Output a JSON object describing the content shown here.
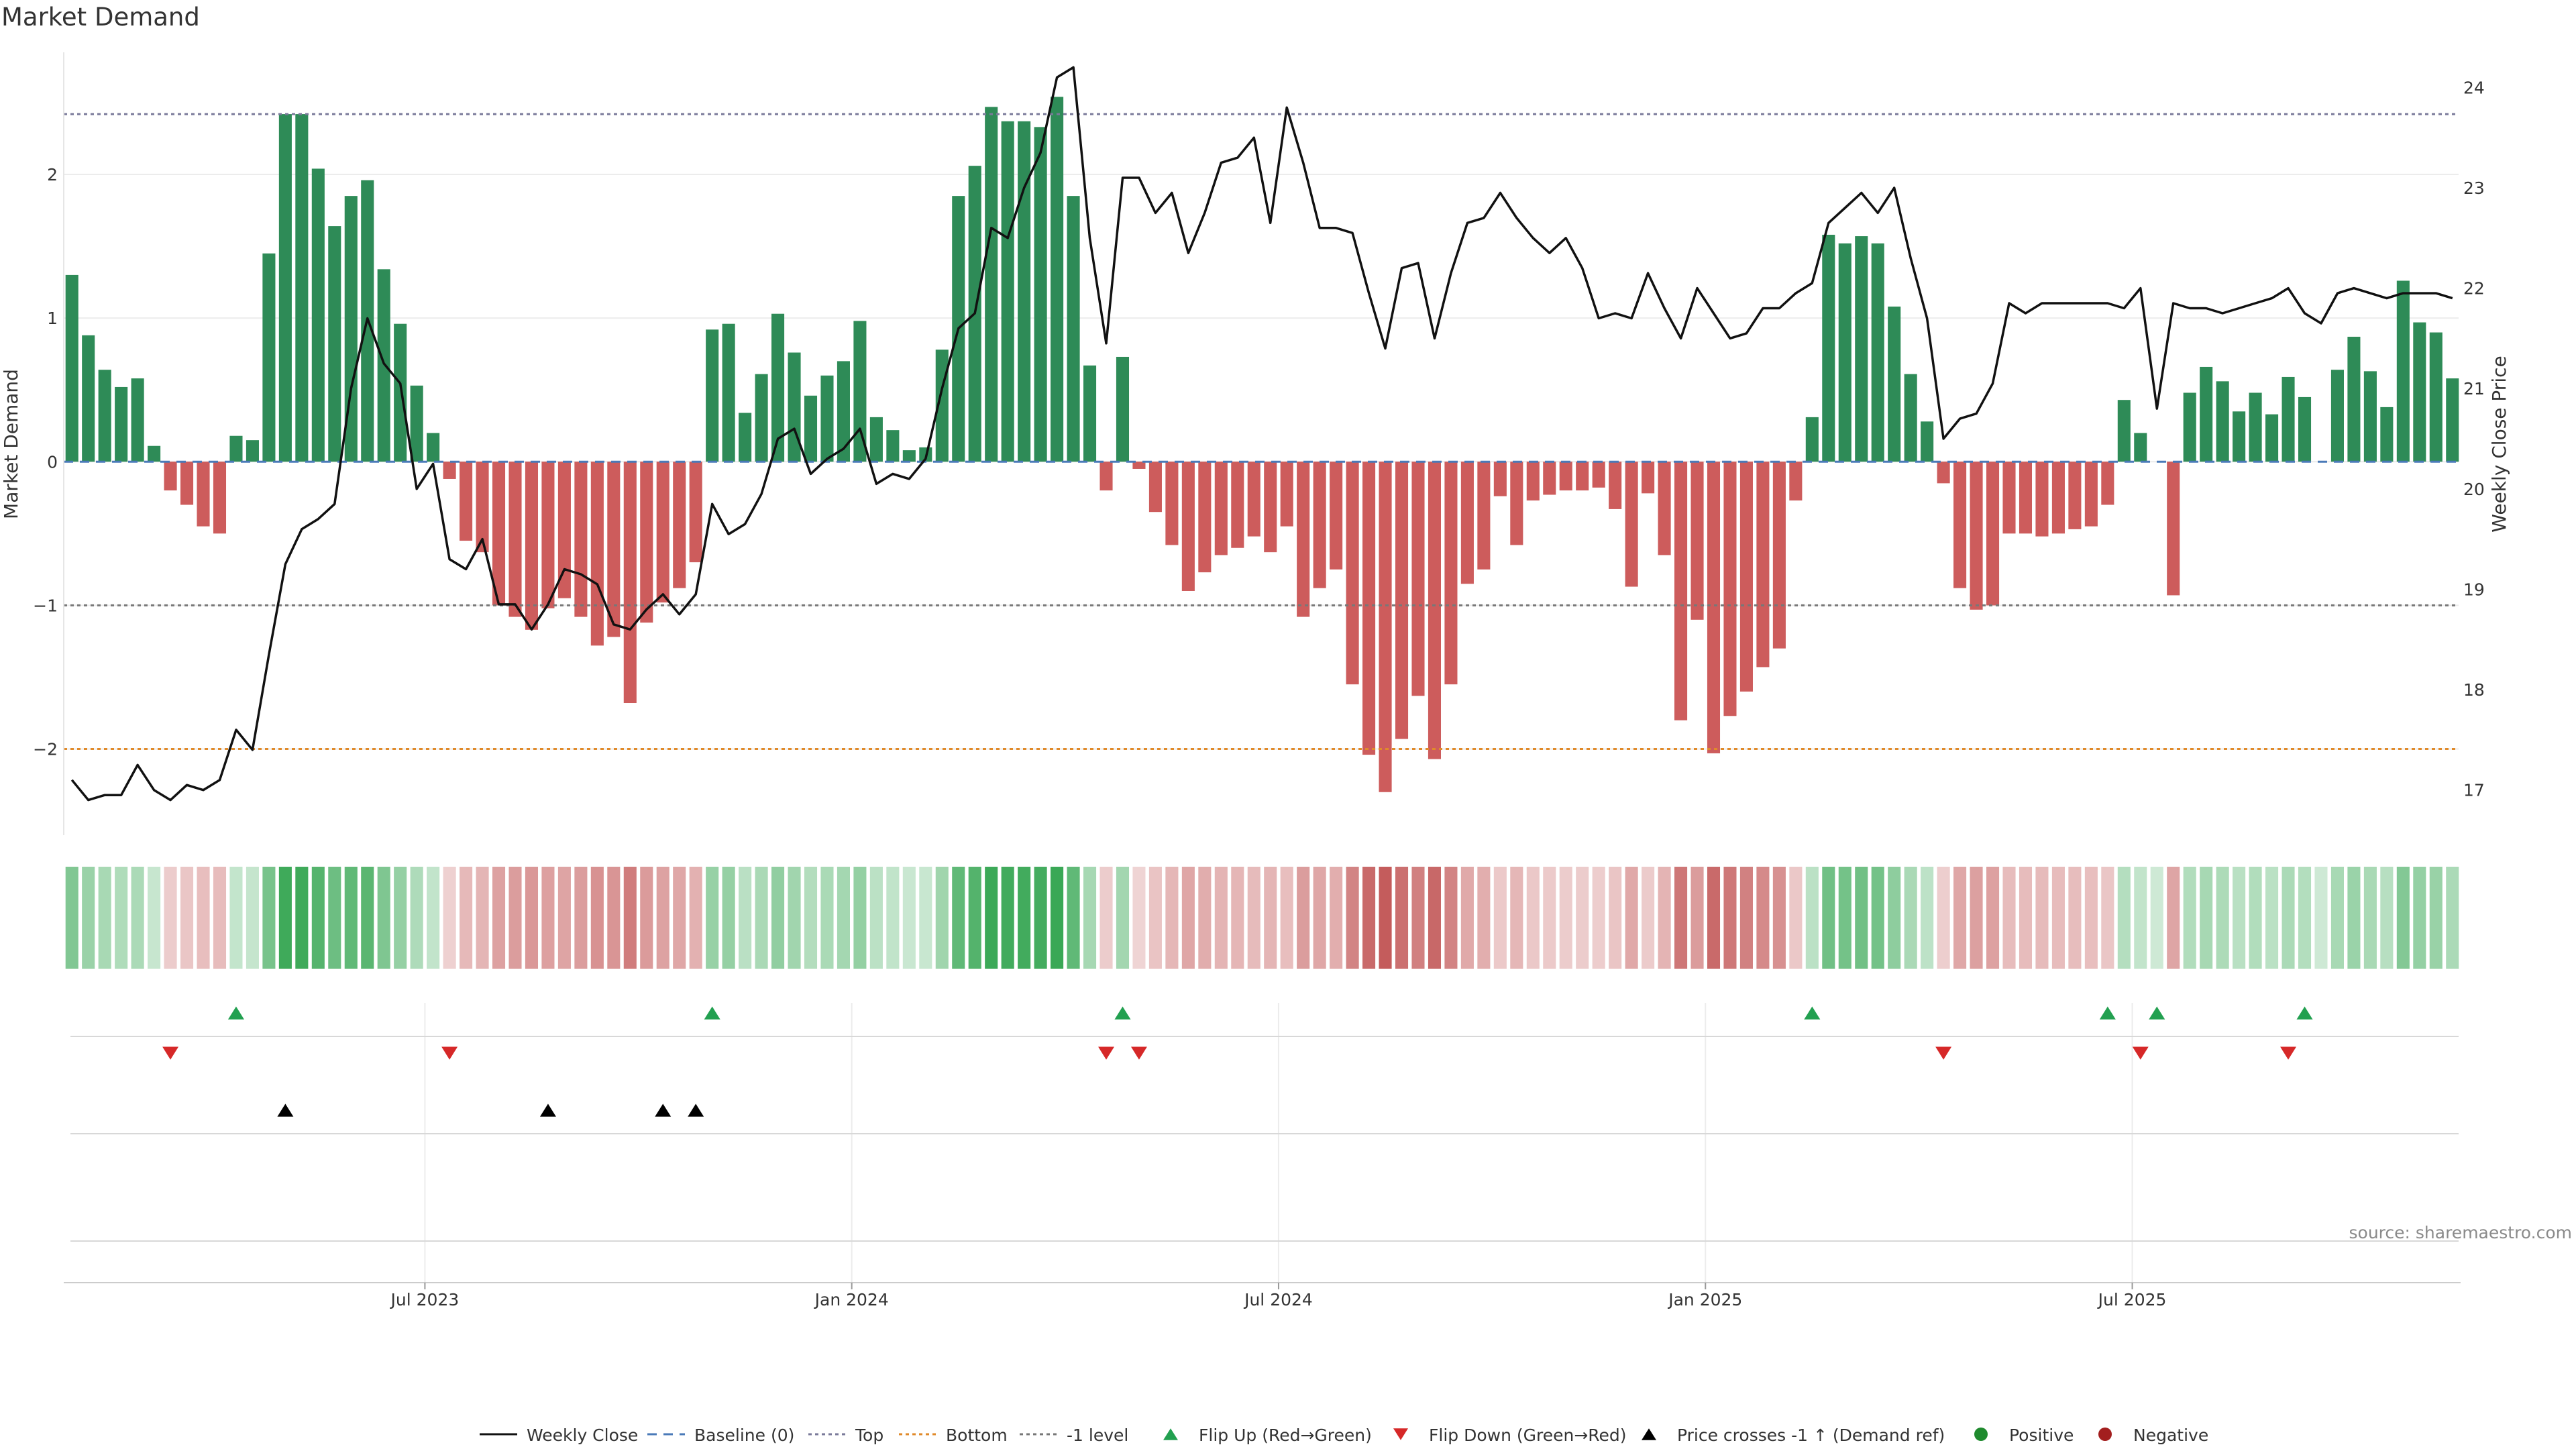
{
  "chart_data": {
    "type": "bar",
    "title": "Market Demand",
    "ylabel_left": "Market Demand",
    "ylabel_right": "Weekly Close Price",
    "ylim_left": [
      -2.6,
      2.85
    ],
    "ylim_right": [
      16.55,
      24.35
    ],
    "yticks_left": [
      -2,
      -1,
      0,
      1,
      2
    ],
    "yticks_right": [
      17,
      18,
      19,
      20,
      21,
      22,
      23,
      24
    ],
    "reference_lines": {
      "top": 2.42,
      "minus_one": -1,
      "bottom": -2,
      "baseline": 0
    },
    "x_ticks": [
      {
        "label": "Jul 2023",
        "index": 22
      },
      {
        "label": "Jan 2024",
        "index": 48
      },
      {
        "label": "Jul 2024",
        "index": 74
      },
      {
        "label": "Jan 2025",
        "index": 100
      },
      {
        "label": "Jul 2025",
        "index": 126
      }
    ],
    "demand": [
      1.3,
      0.88,
      0.64,
      0.52,
      0.58,
      0.11,
      -0.2,
      -0.3,
      -0.45,
      -0.5,
      0.18,
      0.15,
      1.45,
      2.42,
      2.42,
      2.04,
      1.64,
      1.85,
      1.96,
      1.34,
      0.96,
      0.53,
      0.2,
      -0.12,
      -0.55,
      -0.63,
      -1.0,
      -1.08,
      -1.17,
      -1.02,
      -0.95,
      -1.08,
      -1.28,
      -1.22,
      -1.68,
      -1.12,
      -0.98,
      -0.88,
      -0.7,
      0.92,
      0.96,
      0.34,
      0.61,
      1.03,
      0.76,
      0.46,
      0.6,
      0.7,
      0.98,
      0.31,
      0.22,
      0.08,
      0.1,
      0.78,
      1.85,
      2.06,
      2.47,
      2.37,
      2.37,
      2.33,
      2.54,
      1.85,
      0.67,
      -0.2,
      0.73,
      -0.05,
      -0.35,
      -0.58,
      -0.9,
      -0.77,
      -0.65,
      -0.6,
      -0.52,
      -0.63,
      -0.45,
      -1.08,
      -0.88,
      -0.75,
      -1.55,
      -2.04,
      -2.3,
      -1.93,
      -1.63,
      -2.07,
      -1.55,
      -0.85,
      -0.75,
      -0.24,
      -0.58,
      -0.27,
      -0.23,
      -0.2,
      -0.2,
      -0.18,
      -0.33,
      -0.87,
      -0.22,
      -0.65,
      -1.8,
      -1.1,
      -2.03,
      -1.77,
      -1.6,
      -1.43,
      -1.3,
      -0.27,
      0.31,
      1.58,
      1.52,
      1.57,
      1.52,
      1.08,
      0.61,
      0.28,
      -0.15,
      -0.88,
      -1.03,
      -1.0,
      -0.5,
      -0.5,
      -0.52,
      -0.5,
      -0.47,
      -0.45,
      -0.3,
      0.43,
      0.2,
      0.0,
      -0.93,
      0.48,
      0.66,
      0.56,
      0.35,
      0.48,
      0.33,
      0.59,
      0.45,
      0.0,
      0.64,
      0.87,
      0.63,
      0.38,
      1.26,
      0.97,
      0.9,
      0.58
    ],
    "weekly_close": [
      17.1,
      16.9,
      16.95,
      16.95,
      17.25,
      17.0,
      16.9,
      17.05,
      17.0,
      17.1,
      17.6,
      17.4,
      18.35,
      19.25,
      19.6,
      19.7,
      19.85,
      21.0,
      21.7,
      21.25,
      21.05,
      20.0,
      20.25,
      19.3,
      19.2,
      19.5,
      18.85,
      18.85,
      18.6,
      18.85,
      19.2,
      19.15,
      19.05,
      18.65,
      18.6,
      18.8,
      18.95,
      18.75,
      18.95,
      19.85,
      19.55,
      19.65,
      19.95,
      20.5,
      20.6,
      20.15,
      20.3,
      20.4,
      20.6,
      20.05,
      20.15,
      20.1,
      20.3,
      21.0,
      21.6,
      21.75,
      22.6,
      22.5,
      23.0,
      23.35,
      24.1,
      24.2,
      22.5,
      21.45,
      23.1,
      23.1,
      22.75,
      22.95,
      22.35,
      22.75,
      23.25,
      23.3,
      23.5,
      22.65,
      23.8,
      23.25,
      22.6,
      22.6,
      22.55,
      21.95,
      21.4,
      22.2,
      22.25,
      21.5,
      22.15,
      22.65,
      22.7,
      22.95,
      22.7,
      22.5,
      22.35,
      22.5,
      22.2,
      21.7,
      21.75,
      21.7,
      22.15,
      21.8,
      21.5,
      22.0,
      21.75,
      21.5,
      21.55,
      21.8,
      21.8,
      21.95,
      22.05,
      22.65,
      22.8,
      22.95,
      22.75,
      23.0,
      22.3,
      21.7,
      20.5,
      20.7,
      20.75,
      21.05,
      21.85,
      21.75,
      21.85,
      21.85,
      21.85,
      21.85,
      21.85,
      21.8,
      22.0,
      20.8,
      21.85,
      21.8,
      21.8,
      21.75,
      21.8,
      21.85,
      21.9,
      22.0,
      21.75,
      21.65,
      21.95,
      22.0,
      21.95,
      21.9,
      21.95,
      21.95,
      21.95,
      21.9
    ],
    "flip_up_index": [
      10,
      39,
      64,
      106,
      124,
      127,
      136
    ],
    "flip_down_index": [
      6,
      23,
      63,
      65,
      114,
      126,
      135
    ],
    "price_cross_index": [
      13,
      29,
      36,
      38
    ],
    "colors": {
      "positive": "#2e8b57",
      "negative": "#cd5c5c",
      "line": "#111111",
      "flip_up": "#22a050",
      "flip_down": "#d62828",
      "cross": "#000000",
      "top_line": "#7a7a9a",
      "bottom_line": "#e08a2a",
      "baseline": "#4a7ab8",
      "legend_positive": "#1f8a2e",
      "legend_negative": "#a31e1e"
    },
    "legend": [
      {
        "label": "Weekly Close",
        "kind": "line"
      },
      {
        "label": "Baseline (0)",
        "kind": "baseline"
      },
      {
        "label": "Top",
        "kind": "top"
      },
      {
        "label": "Bottom",
        "kind": "bottom"
      },
      {
        "label": "-1 level",
        "kind": "minus1"
      },
      {
        "label": "Flip Up (Red→Green)",
        "kind": "flip_up"
      },
      {
        "label": "Flip Down (Green→Red)",
        "kind": "flip_down"
      },
      {
        "label": "Price crosses -1 ↑ (Demand ref)",
        "kind": "cross"
      },
      {
        "label": "Positive",
        "kind": "positive"
      },
      {
        "label": "Negative",
        "kind": "negative"
      }
    ],
    "source": "source: sharemaestro.com"
  }
}
